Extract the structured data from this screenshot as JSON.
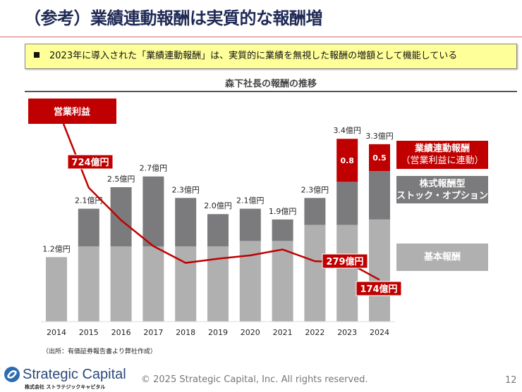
{
  "header": {
    "title": "（参考）業績連動報酬は実質的な報酬増"
  },
  "note": {
    "text": "2023年に導入された「業績連動報酬」は、実質的に業績を無視した報酬の増額として機能している"
  },
  "chart_data": {
    "type": "bar",
    "title": "森下社長の報酬の推移",
    "stacked": true,
    "categories": [
      "2014",
      "2015",
      "2016",
      "2017",
      "2018",
      "2019",
      "2020",
      "2021",
      "2022",
      "2023",
      "2024"
    ],
    "series": [
      {
        "name": "基本報酬",
        "color": "#b0b0b0",
        "values": [
          1.2,
          1.4,
          1.4,
          1.4,
          1.4,
          1.4,
          1.5,
          1.5,
          1.8,
          1.8,
          1.9
        ]
      },
      {
        "name": "株式報酬型ストック・オプション",
        "color": "#7b7b7d",
        "values": [
          0,
          0.7,
          1.1,
          1.3,
          0.9,
          0.6,
          0.6,
          0.4,
          0.5,
          0.8,
          0.9
        ]
      },
      {
        "name": "業績連動報酬（営業利益に連動）",
        "color": "#c00000",
        "values": [
          0,
          0,
          0,
          0,
          0,
          0,
          0,
          0,
          0,
          0.8,
          0.5
        ]
      }
    ],
    "legend_labels": [
      {
        "line1": "業績連動報酬",
        "line2": "（営業利益に連動）"
      },
      {
        "line1": "株式報酬型",
        "line2": "ストック・オプション"
      },
      {
        "line1": "基本報酬",
        "line2": ""
      }
    ],
    "segment_labels": {
      "2023": "0.8",
      "2024": "0.5"
    },
    "total_labels": [
      "1.2億円",
      "2.1億円",
      "2.5億円",
      "2.7億円",
      "2.3億円",
      "2.0億円",
      "2.1億円",
      "1.9億円",
      "2.3億円",
      "3.4億円",
      "3.3億円"
    ],
    "unit": "億円",
    "line_series": {
      "name": "営業利益",
      "color": "#c00000",
      "values": [
        1000,
        724,
        530,
        375,
        275,
        300,
        320,
        355,
        285,
        279,
        174
      ],
      "labels": [
        {
          "year": "2015",
          "text": "724億円"
        },
        {
          "year": "2023",
          "text": "279億円"
        },
        {
          "year": "2024",
          "text": "174億円"
        }
      ]
    },
    "legend": "right",
    "grid": false
  },
  "footer": {
    "source": "（出所：有価証券報告書より弊社作成）",
    "logo_main": "Strategic Capital",
    "logo_sub": "株式会社 ストラテジックキャピタル",
    "copyright": "© 2025 Strategic Capital, Inc. All rights reserved.",
    "page": "12"
  }
}
